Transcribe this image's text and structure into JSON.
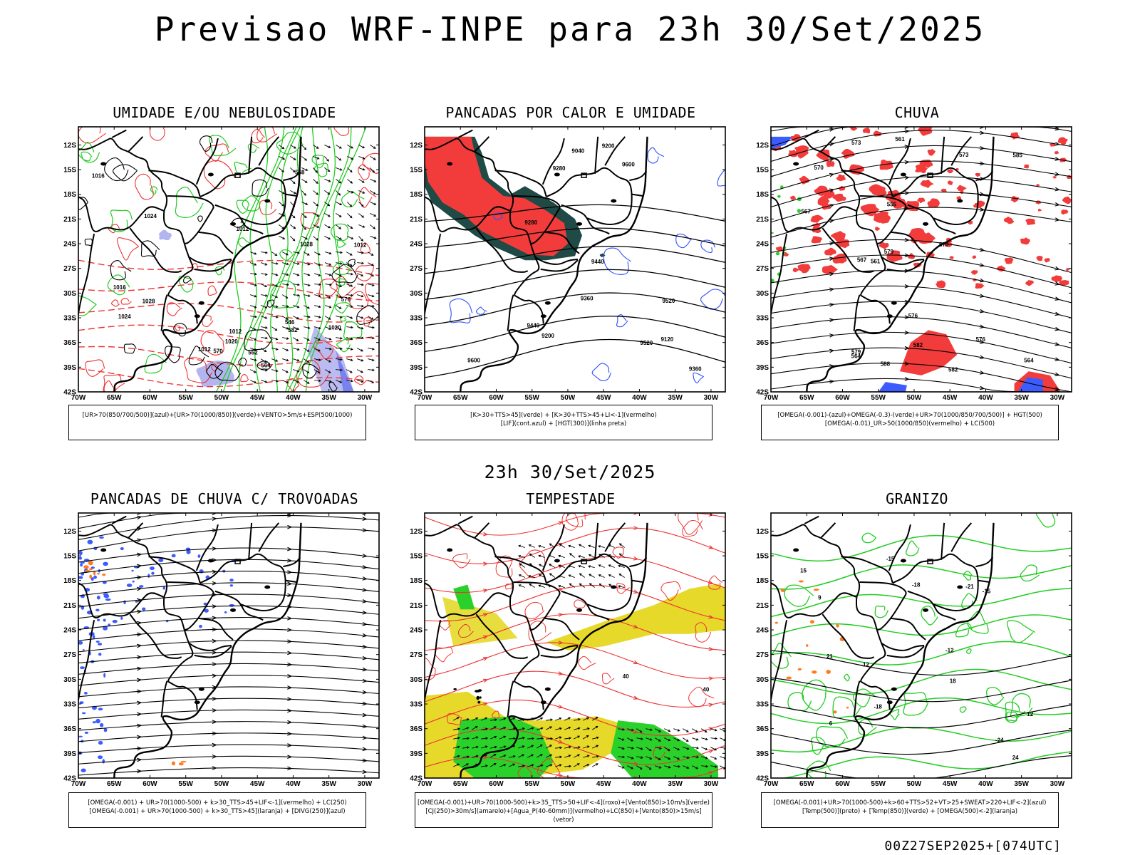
{
  "header": {
    "title": "Previsao WRF-INPE  para 23h 30/Set/2025",
    "subtitle": "23h 30/Set/2025",
    "stamp": "00Z27SEP2025+[074UTC]"
  },
  "colors": {
    "red_fill": "#f23c3c",
    "green_fill": "#2bd12b",
    "yellow_fill": "#e6d92a",
    "blue_fill": "#3c5cff",
    "lilac_fill": "#b3b5f0",
    "dark_teal": "#1f4a45",
    "contour_black": "#111111",
    "contour_red": "#ee3333",
    "contour_green": "#22cc22"
  },
  "axes": {
    "y_ticks": [
      "12S",
      "15S",
      "18S",
      "21S",
      "24S",
      "27S",
      "30S",
      "33S",
      "36S",
      "39S",
      "42S"
    ],
    "x_ticks": [
      "70W",
      "65W",
      "60W",
      "55W",
      "50W",
      "45W",
      "40W",
      "35W",
      "30W"
    ]
  },
  "panels": [
    {
      "id": "umidade",
      "title": "UMIDADE E/OU NEBULOSIDADE",
      "legend": [
        "[UR>70(850/700/500)](azul)+[UR>70(1000/850)](verde)+VENTO>5m/s+ESP(500/1000)"
      ],
      "contour_labels": [
        "1012",
        "1012",
        "1012",
        "1016",
        "1012",
        "1024",
        "1020",
        "1016",
        "1028",
        "1024",
        "1028",
        "1020",
        "570",
        "564",
        "558",
        "552",
        "546",
        "582",
        "576"
      ]
    },
    {
      "id": "pancadas",
      "title": "PANCADAS POR CALOR E UMIDADE",
      "legend": [
        "[K>30+TTS>45](verde) + [K>30+TTS>45+LI<-1](vermelho)",
        "[LIF](cont.azul) + [HGT(300)](linha preta)"
      ],
      "contour_labels": [
        "9600",
        "9520",
        "9440",
        "9360",
        "9280",
        "9200",
        "9120",
        "9600",
        "9520",
        "9440",
        "9360",
        "9280",
        "9200",
        "9040"
      ]
    },
    {
      "id": "chuva",
      "title": "CHUVA",
      "legend": [
        "[OMEGA(-0.001)-(azul)+OMEGA(-0.3)-(verde)+UR>70(1000/850/700/500)] + HGT(500)",
        "[OMEGA(-0.01)_UR>50(1000/850)(vermelho) + LC(500)"
      ],
      "contour_labels": [
        "588",
        "582",
        "579",
        "576",
        "573",
        "570",
        "567",
        "564",
        "561",
        "555",
        "585",
        "582",
        "579",
        "576",
        "573",
        "570",
        "567",
        "564",
        "561"
      ]
    },
    {
      "id": "trovoadas",
      "title": "PANCADAS DE CHUVA C/ TROVOADAS",
      "legend": [
        "[OMEGA(-0.001) + UR>70(1000-500) + k>30_TTS>45+LIF<-1](vermelho) + LC(250)",
        "[OMEGA(-0.001) + UR>70(1000-500) + k>30_TTS>45](laranja) + [DIVG(250)](azul)"
      ],
      "contour_labels": []
    },
    {
      "id": "tempestade",
      "title": "TEMPESTADE",
      "legend": [
        "[OMEGA(-0.001)+UR>70(1000-500)+k>35_TTS>50+LIF<-4](roxo)+[Vento(850)>10m/s](verde)",
        "[CJ(250)>30m/s](amarelo)+[Agua_P(40-60mm)](vermelho)+LC(850)+[Vento(850)>15m/s](vetor)"
      ],
      "contour_labels": [
        "40",
        "40"
      ]
    },
    {
      "id": "granizo",
      "title": "GRANIZO",
      "legend": [
        "[OMEGA(-0.001)+UR>70(1000-500)+k>60+TTS>52+VT>25+SWEAT>220+LIF<-2](azul)",
        "[Temp(500)](preto) + [Temp(850)](verde) + [OMEGA(500)<-2](laranja)"
      ],
      "contour_labels": [
        "24",
        "21",
        "18",
        "15",
        "12",
        "9",
        "6",
        "-12",
        "-15",
        "-18",
        "-21",
        "-24",
        "-18",
        "-15",
        "-12"
      ]
    }
  ]
}
